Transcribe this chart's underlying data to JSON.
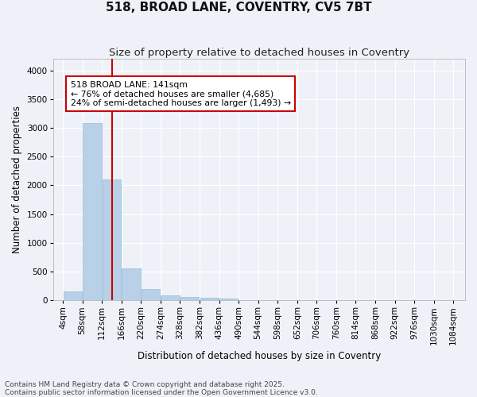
{
  "title": "518, BROAD LANE, COVENTRY, CV5 7BT",
  "subtitle": "Size of property relative to detached houses in Coventry",
  "xlabel": "Distribution of detached houses by size in Coventry",
  "ylabel": "Number of detached properties",
  "bar_color": "#b8d0e8",
  "bar_edge_color": "#9bbbd8",
  "bins": [
    "4sqm",
    "58sqm",
    "112sqm",
    "166sqm",
    "220sqm",
    "274sqm",
    "328sqm",
    "382sqm",
    "436sqm",
    "490sqm",
    "544sqm",
    "598sqm",
    "652sqm",
    "706sqm",
    "760sqm",
    "814sqm",
    "868sqm",
    "922sqm",
    "976sqm",
    "1030sqm",
    "1084sqm"
  ],
  "bin_edges": [
    4,
    58,
    112,
    166,
    220,
    274,
    328,
    382,
    436,
    490,
    544,
    598,
    652,
    706,
    760,
    814,
    868,
    922,
    976,
    1030,
    1084
  ],
  "values": [
    150,
    3080,
    2100,
    560,
    200,
    90,
    60,
    40,
    30,
    0,
    0,
    0,
    0,
    0,
    0,
    0,
    0,
    0,
    0,
    0
  ],
  "ylim": [
    0,
    4200
  ],
  "yticks": [
    0,
    500,
    1000,
    1500,
    2000,
    2500,
    3000,
    3500,
    4000
  ],
  "property_line_x": 141,
  "annotation_title": "518 BROAD LANE: 141sqm",
  "annotation_line1": "← 76% of detached houses are smaller (4,685)",
  "annotation_line2": "24% of semi-detached houses are larger (1,493) →",
  "annotation_box_color": "#ffffff",
  "annotation_box_edge_color": "#cc0000",
  "vline_color": "#cc0000",
  "background_color": "#eef2f8",
  "plot_bg_color": "#eef2f8",
  "footer_line1": "Contains HM Land Registry data © Crown copyright and database right 2025.",
  "footer_line2": "Contains public sector information licensed under the Open Government Licence v3.0.",
  "grid_color": "#ffffff",
  "title_fontsize": 11,
  "subtitle_fontsize": 9.5,
  "axis_label_fontsize": 8.5,
  "tick_fontsize": 7.5,
  "footer_fontsize": 6.5
}
